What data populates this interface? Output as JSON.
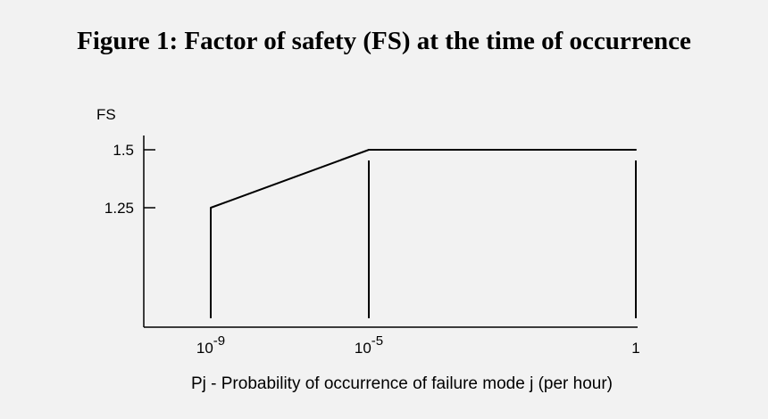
{
  "figure_title": "Figure 1: Factor of safety (FS) at the time of occurrence",
  "chart_data": {
    "type": "line",
    "title": "Figure 1: Factor of safety (FS) at the time of occurrence",
    "xlabel": "Pj - Probability of occurrence of failure mode j (per hour)",
    "ylabel": "FS",
    "x_scale": "log",
    "x_ticks": [
      {
        "value": 1e-09,
        "base": "10",
        "exp": "-9"
      },
      {
        "value": 1e-05,
        "base": "10",
        "exp": "-5"
      },
      {
        "value": 1,
        "base": "1",
        "exp": ""
      }
    ],
    "y_ticks": [
      {
        "value": 1.25,
        "label": "1.25"
      },
      {
        "value": 1.5,
        "label": "1.5"
      }
    ],
    "series": [
      {
        "x": [
          1e-09,
          1e-05,
          1
        ],
        "y": [
          1.25,
          1.5,
          1.5
        ]
      }
    ],
    "vertical_lines_at_x": [
      1e-09,
      1e-05,
      1
    ],
    "grid": false,
    "line_color": "#000000"
  }
}
